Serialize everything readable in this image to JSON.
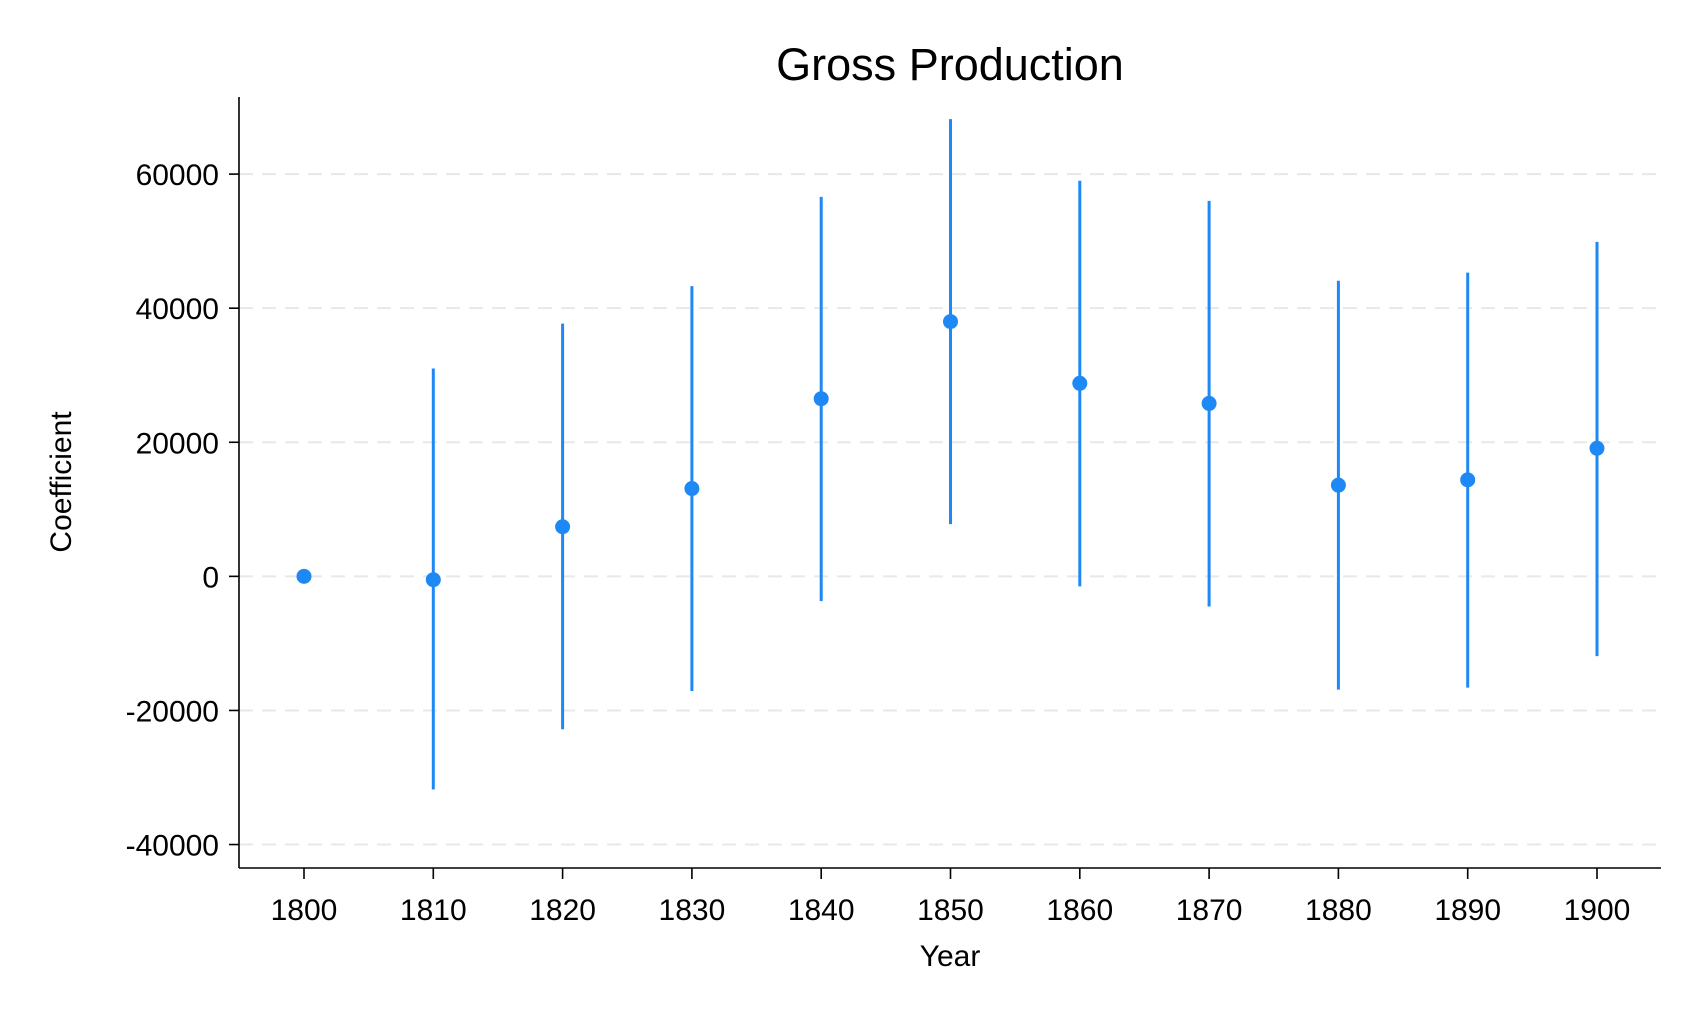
{
  "colors": {
    "series": "#1e88f5",
    "axis": "#000000",
    "grid": "#e8e8e8",
    "background": "#ffffff"
  },
  "chart_data": {
    "type": "scatter",
    "title": "Gross Production",
    "xlabel": "Year",
    "ylabel": "Coefficient",
    "xlim": [
      1795,
      1905
    ],
    "ylim": [
      -43500,
      71500
    ],
    "x_ticks": [
      1800,
      1810,
      1820,
      1830,
      1840,
      1850,
      1860,
      1870,
      1880,
      1890,
      1900
    ],
    "y_ticks": [
      -40000,
      -20000,
      0,
      20000,
      40000,
      60000
    ],
    "y_tick_labels": [
      "-40000",
      "-20000",
      "0",
      "20000",
      "40000",
      "60000"
    ],
    "grid": "horizontal dashed",
    "legend": "none",
    "series": [
      {
        "x": [
          1800,
          1810,
          1820,
          1830,
          1840,
          1850,
          1860,
          1870,
          1880,
          1890,
          1900
        ],
        "y": [
          0,
          -500,
          7400,
          13100,
          26500,
          38000,
          28800,
          25800,
          13600,
          14400,
          19100
        ],
        "ci_low": [
          null,
          -31800,
          -22800,
          -17100,
          -3700,
          7800,
          -1500,
          -4500,
          -16900,
          -16600,
          -11900
        ],
        "ci_high": [
          null,
          31000,
          37700,
          43300,
          56600,
          68200,
          59000,
          56000,
          44100,
          45300,
          49900
        ]
      }
    ]
  }
}
